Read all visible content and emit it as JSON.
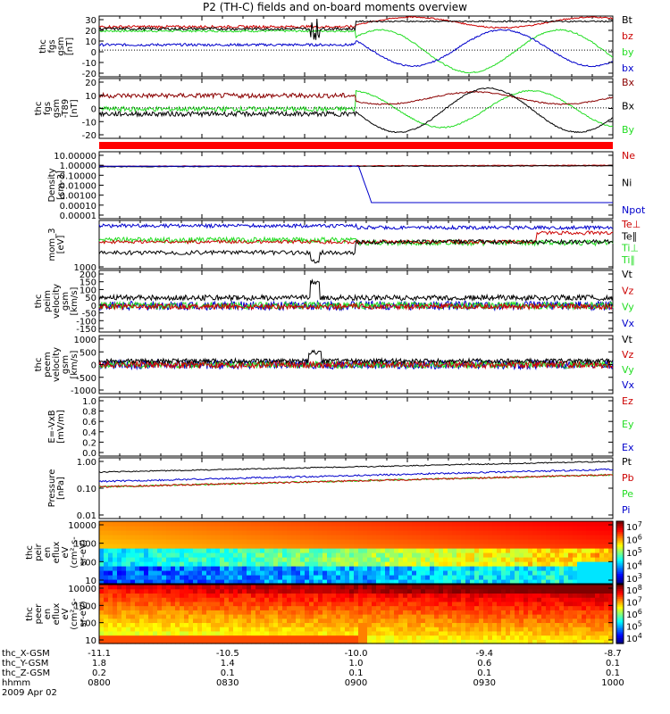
{
  "title": "P2 (TH-C) fields and on-board moments overview",
  "colors": {
    "black": "#000000",
    "red": "#cc0000",
    "green": "#22dd22",
    "blue": "#0000cc",
    "darkred": "#8b0000"
  },
  "footer": {
    "row_labels": [
      "thc_X-GSM",
      "thc_Y-GSM",
      "thc_Z-GSM",
      "hhmm",
      "2009 Apr 02"
    ],
    "columns": [
      {
        "x": "-11.1",
        "y": "1.8",
        "z": "0.2",
        "t": "0800"
      },
      {
        "x": "-10.5",
        "y": "1.4",
        "z": "0.1",
        "t": "0830"
      },
      {
        "x": "-10.0",
        "y": "1.0",
        "z": "0.1",
        "t": "0900"
      },
      {
        "x": "-9.4",
        "y": "0.6",
        "z": "0.1",
        "t": "0930"
      },
      {
        "x": "-8.7",
        "y": "0.1",
        "z": "0.1",
        "t": "1000"
      }
    ]
  },
  "chart_data": [
    {
      "type": "line",
      "ylabel": [
        "thc",
        "fgs",
        "gsm",
        "[nT]"
      ],
      "yticks": [
        "30",
        "20",
        "10",
        "0",
        "-10",
        "-20"
      ],
      "ylim": [
        -25,
        32
      ],
      "series": [
        {
          "name": "Bt",
          "color": "black"
        },
        {
          "name": "bz",
          "color": "red"
        },
        {
          "name": "by",
          "color": "green"
        },
        {
          "name": "bx",
          "color": "blue"
        }
      ]
    },
    {
      "type": "line",
      "ylabel": [
        "thc",
        "fgs",
        "gsm",
        "-T89",
        "[nT]"
      ],
      "yticks": [
        "20",
        "10",
        "0",
        "-10",
        "-20"
      ],
      "ylim": [
        -25,
        24
      ],
      "series": [
        {
          "name": "Bx",
          "color": "darkred"
        },
        {
          "name": "Bx",
          "color": "black"
        },
        {
          "name": "By",
          "color": "green"
        }
      ]
    },
    {
      "type": "line",
      "ylabel": [],
      "yticks": [],
      "series": []
    },
    {
      "type": "line",
      "ylabel": [
        "Density",
        "[cm-3]"
      ],
      "yticks": [
        "10.00000",
        "1.00000",
        "0.10000",
        "0.01000",
        "0.00100",
        "0.00010",
        "0.00001"
      ],
      "ylim": [
        -5,
        1
      ],
      "log": true,
      "series": [
        {
          "name": "Ne",
          "color": "red"
        },
        {
          "name": "Ni",
          "color": "black"
        },
        {
          "name": "Npot",
          "color": "blue"
        }
      ]
    },
    {
      "type": "line",
      "ylabel": [
        "mom_3",
        "[eV]"
      ],
      "yticks": [
        "1000"
      ],
      "log": true,
      "series": [
        {
          "name": "Te⊥",
          "color": "red"
        },
        {
          "name": "Te∥",
          "color": "black"
        },
        {
          "name": "Ti⊥",
          "color": "green"
        },
        {
          "name": "Ti∥",
          "color": "green"
        }
      ]
    },
    {
      "type": "line",
      "ylabel": [
        "thc",
        "peim",
        "velocity",
        "gsm",
        "[km/s]"
      ],
      "yticks": [
        "200",
        "150",
        "100",
        "50",
        "0",
        "-50",
        "-100",
        "-150"
      ],
      "ylim": [
        -150,
        200
      ],
      "series": [
        {
          "name": "Vt",
          "color": "black"
        },
        {
          "name": "Vz",
          "color": "red"
        },
        {
          "name": "Vy",
          "color": "green"
        },
        {
          "name": "Vx",
          "color": "blue"
        }
      ]
    },
    {
      "type": "line",
      "ylabel": [
        "thc",
        "peem",
        "velocity",
        "gsm",
        "[km/s]"
      ],
      "yticks": [
        "1000",
        "500",
        "0",
        "-500",
        "-1000"
      ],
      "ylim": [
        -1000,
        1000
      ],
      "series": [
        {
          "name": "Vt",
          "color": "black"
        },
        {
          "name": "Vz",
          "color": "red"
        },
        {
          "name": "Vy",
          "color": "green"
        },
        {
          "name": "Vx",
          "color": "blue"
        }
      ]
    },
    {
      "type": "line",
      "ylabel": [
        "E=-VxB",
        "[mV/m]"
      ],
      "yticks": [
        "1.0",
        "0.8",
        "0.6",
        "0.4",
        "0.2",
        "0.0"
      ],
      "ylim": [
        0,
        1
      ],
      "series": [
        {
          "name": "Ez",
          "color": "red"
        },
        {
          "name": "Ey",
          "color": "green"
        },
        {
          "name": "Ex",
          "color": "blue"
        }
      ]
    },
    {
      "type": "line",
      "ylabel": [
        "Pressure",
        "[nPa]"
      ],
      "yticks": [
        "1.00",
        "0.10",
        "0.01"
      ],
      "log": true,
      "series": [
        {
          "name": "Pt",
          "color": "black"
        },
        {
          "name": "Pb",
          "color": "red"
        },
        {
          "name": "Pe",
          "color": "green"
        },
        {
          "name": "Pi",
          "color": "blue"
        }
      ]
    },
    {
      "type": "heatmap",
      "ylabel": [
        "thc",
        "peir",
        "en",
        "eflux",
        "eV",
        "(cm²-s-",
        "sr-eV)"
      ],
      "yticks": [
        "10000",
        "1000",
        "100",
        "10"
      ],
      "colorbar_exponents": [
        "7",
        "6",
        "5",
        "4",
        "3"
      ]
    },
    {
      "type": "heatmap",
      "ylabel": [
        "thc",
        "peer",
        "en",
        "eflux",
        "eV",
        "(cm²-s-",
        "sr-eV)"
      ],
      "yticks": [
        "10000",
        "1000",
        "100",
        "10"
      ],
      "colorbar_exponents": [
        "8",
        "7",
        "6",
        "5",
        "4"
      ]
    }
  ]
}
